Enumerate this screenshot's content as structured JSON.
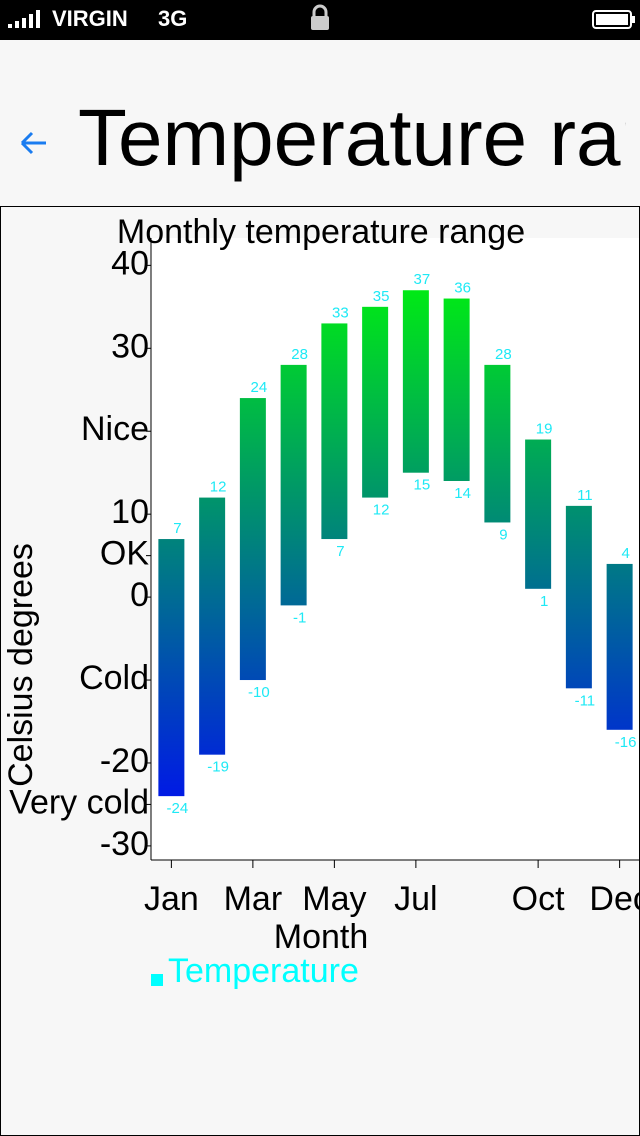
{
  "status_bar": {
    "carrier": "VIRGIN",
    "network": "3G"
  },
  "nav": {
    "title": "Temperature range"
  },
  "chart_data": {
    "type": "columnrange",
    "title": "Monthly temperature range",
    "x_label": "Month",
    "y_label": "Celsius degrees",
    "categories": [
      "Jan",
      null,
      "Mar",
      null,
      "May",
      null,
      "Jul",
      null,
      null,
      "Oct",
      null,
      "Dec"
    ],
    "series": [
      {
        "name": "Temperature",
        "color": "#00ffff",
        "gradient": {
          "top": "#00ff00",
          "bottom": "#0000ff"
        },
        "label_color": "#1ee9f5",
        "low": [
          -24,
          -19,
          -10,
          -1,
          7,
          12,
          15,
          14,
          9,
          1,
          -11,
          -16
        ],
        "high": [
          7,
          12,
          24,
          28,
          33,
          35,
          37,
          36,
          28,
          19,
          11,
          4
        ]
      }
    ],
    "ylim": [
      -31.7,
      43.3
    ],
    "yticks": [
      -30,
      {
        "value": -25,
        "label": "Very cold"
      },
      -20,
      {
        "value": -10,
        "label": "Cold"
      },
      0,
      {
        "value": 5,
        "label": "OK"
      },
      10,
      {
        "value": 20,
        "label": "Nice"
      },
      30,
      40
    ]
  }
}
